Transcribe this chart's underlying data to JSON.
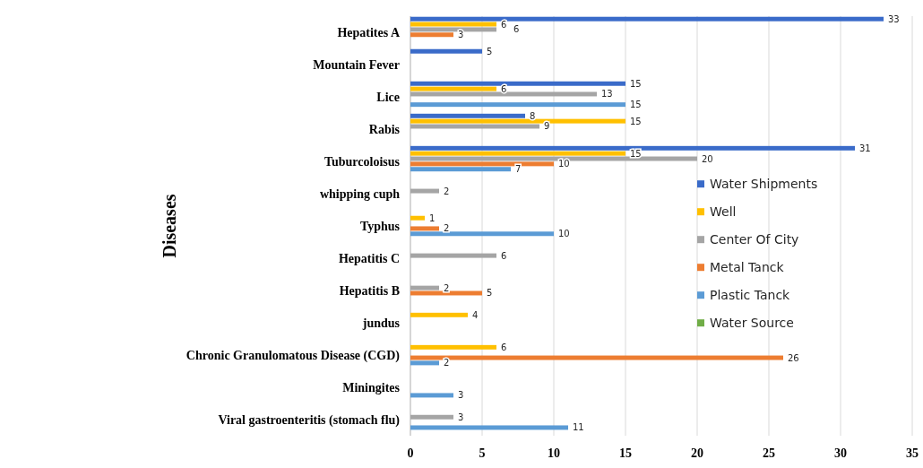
{
  "chart_data": {
    "type": "bar",
    "orientation": "horizontal",
    "ylabel": "Diseases",
    "categories": [
      "Hepatites A",
      "Mountain Fever",
      "Lice",
      "Rabis",
      "Tuburcoloisus",
      "whipping cuph",
      "Typhus",
      "Hepatitis C",
      "Hepatitis B",
      "jundus",
      "Chronic Granulomatous Disease (CGD)",
      "Miningites",
      "Viral gastroenteritis (stomach flu)"
    ],
    "series": [
      {
        "name": "Water Shipments",
        "color": "#3a6bc9",
        "values": [
          33,
          5,
          15,
          8,
          31,
          null,
          null,
          null,
          null,
          null,
          null,
          null,
          null
        ]
      },
      {
        "name": "Well",
        "color": "#ffc000",
        "values": [
          6,
          null,
          6,
          15,
          15,
          null,
          1,
          null,
          null,
          4,
          6,
          null,
          null
        ]
      },
      {
        "name": "Center Of City",
        "color": "#a5a5a5",
        "values": [
          6,
          null,
          13,
          9,
          20,
          2,
          null,
          6,
          2,
          null,
          null,
          null,
          3
        ]
      },
      {
        "name": "Metal Tanck",
        "color": "#ed7d31",
        "values": [
          3,
          null,
          null,
          null,
          10,
          null,
          2,
          null,
          5,
          null,
          26,
          null,
          null
        ]
      },
      {
        "name": "Plastic Tanck",
        "color": "#5b9bd5",
        "values": [
          null,
          null,
          15,
          null,
          7,
          null,
          10,
          null,
          null,
          null,
          2,
          3,
          11
        ]
      },
      {
        "name": "Water Source",
        "color": "#70ad47",
        "values": [
          null,
          null,
          null,
          null,
          null,
          null,
          null,
          null,
          null,
          null,
          null,
          null,
          null
        ]
      }
    ],
    "xlim": [
      0,
      35
    ],
    "xticks": [
      0,
      5,
      10,
      15,
      20,
      25,
      30,
      35
    ],
    "grid": "x",
    "legend": "right",
    "data_labels": true
  }
}
